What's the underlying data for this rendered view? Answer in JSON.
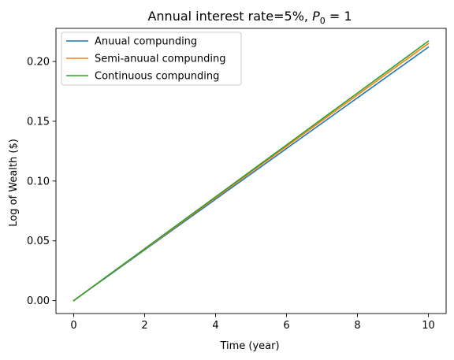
{
  "chart_data": {
    "type": "line",
    "title": {
      "prefix": "Annual interest rate=5%, ",
      "math_symbol": "P",
      "math_subscript": "0",
      "math_rest": " = 1"
    },
    "xlabel": "Time (year)",
    "ylabel": "Log of Wealth ($)",
    "xlim": [
      -0.5,
      10.5
    ],
    "ylim": [
      -0.0108,
      0.2277
    ],
    "xticks": [
      0,
      2,
      4,
      6,
      8,
      10
    ],
    "xtick_labels": [
      "0",
      "2",
      "4",
      "6",
      "8",
      "10"
    ],
    "yticks": [
      0.0,
      0.05,
      0.1,
      0.15,
      0.2
    ],
    "ytick_labels": [
      "0.00",
      "0.05",
      "0.10",
      "0.15",
      "0.20"
    ],
    "grid": false,
    "legend_position": "upper-left",
    "x": [
      0,
      1,
      2,
      3,
      4,
      5,
      6,
      7,
      8,
      9,
      10
    ],
    "series": [
      {
        "name": "Anuual compunding",
        "color": "#1f77b4",
        "values": [
          0.0,
          0.0212,
          0.0424,
          0.0636,
          0.0848,
          0.106,
          0.1272,
          0.1484,
          0.1696,
          0.1908,
          0.212
        ]
      },
      {
        "name": "Semi-anuual compunding",
        "color": "#ff7f0e",
        "values": [
          0.0,
          0.0215,
          0.043,
          0.0645,
          0.086,
          0.1075,
          0.129,
          0.1505,
          0.172,
          0.1935,
          0.215
        ]
      },
      {
        "name": "Continuous compunding",
        "color": "#2ca02c",
        "values": [
          0.0,
          0.0217,
          0.0434,
          0.0651,
          0.0868,
          0.1085,
          0.1302,
          0.1519,
          0.1736,
          0.1953,
          0.217
        ]
      }
    ]
  }
}
